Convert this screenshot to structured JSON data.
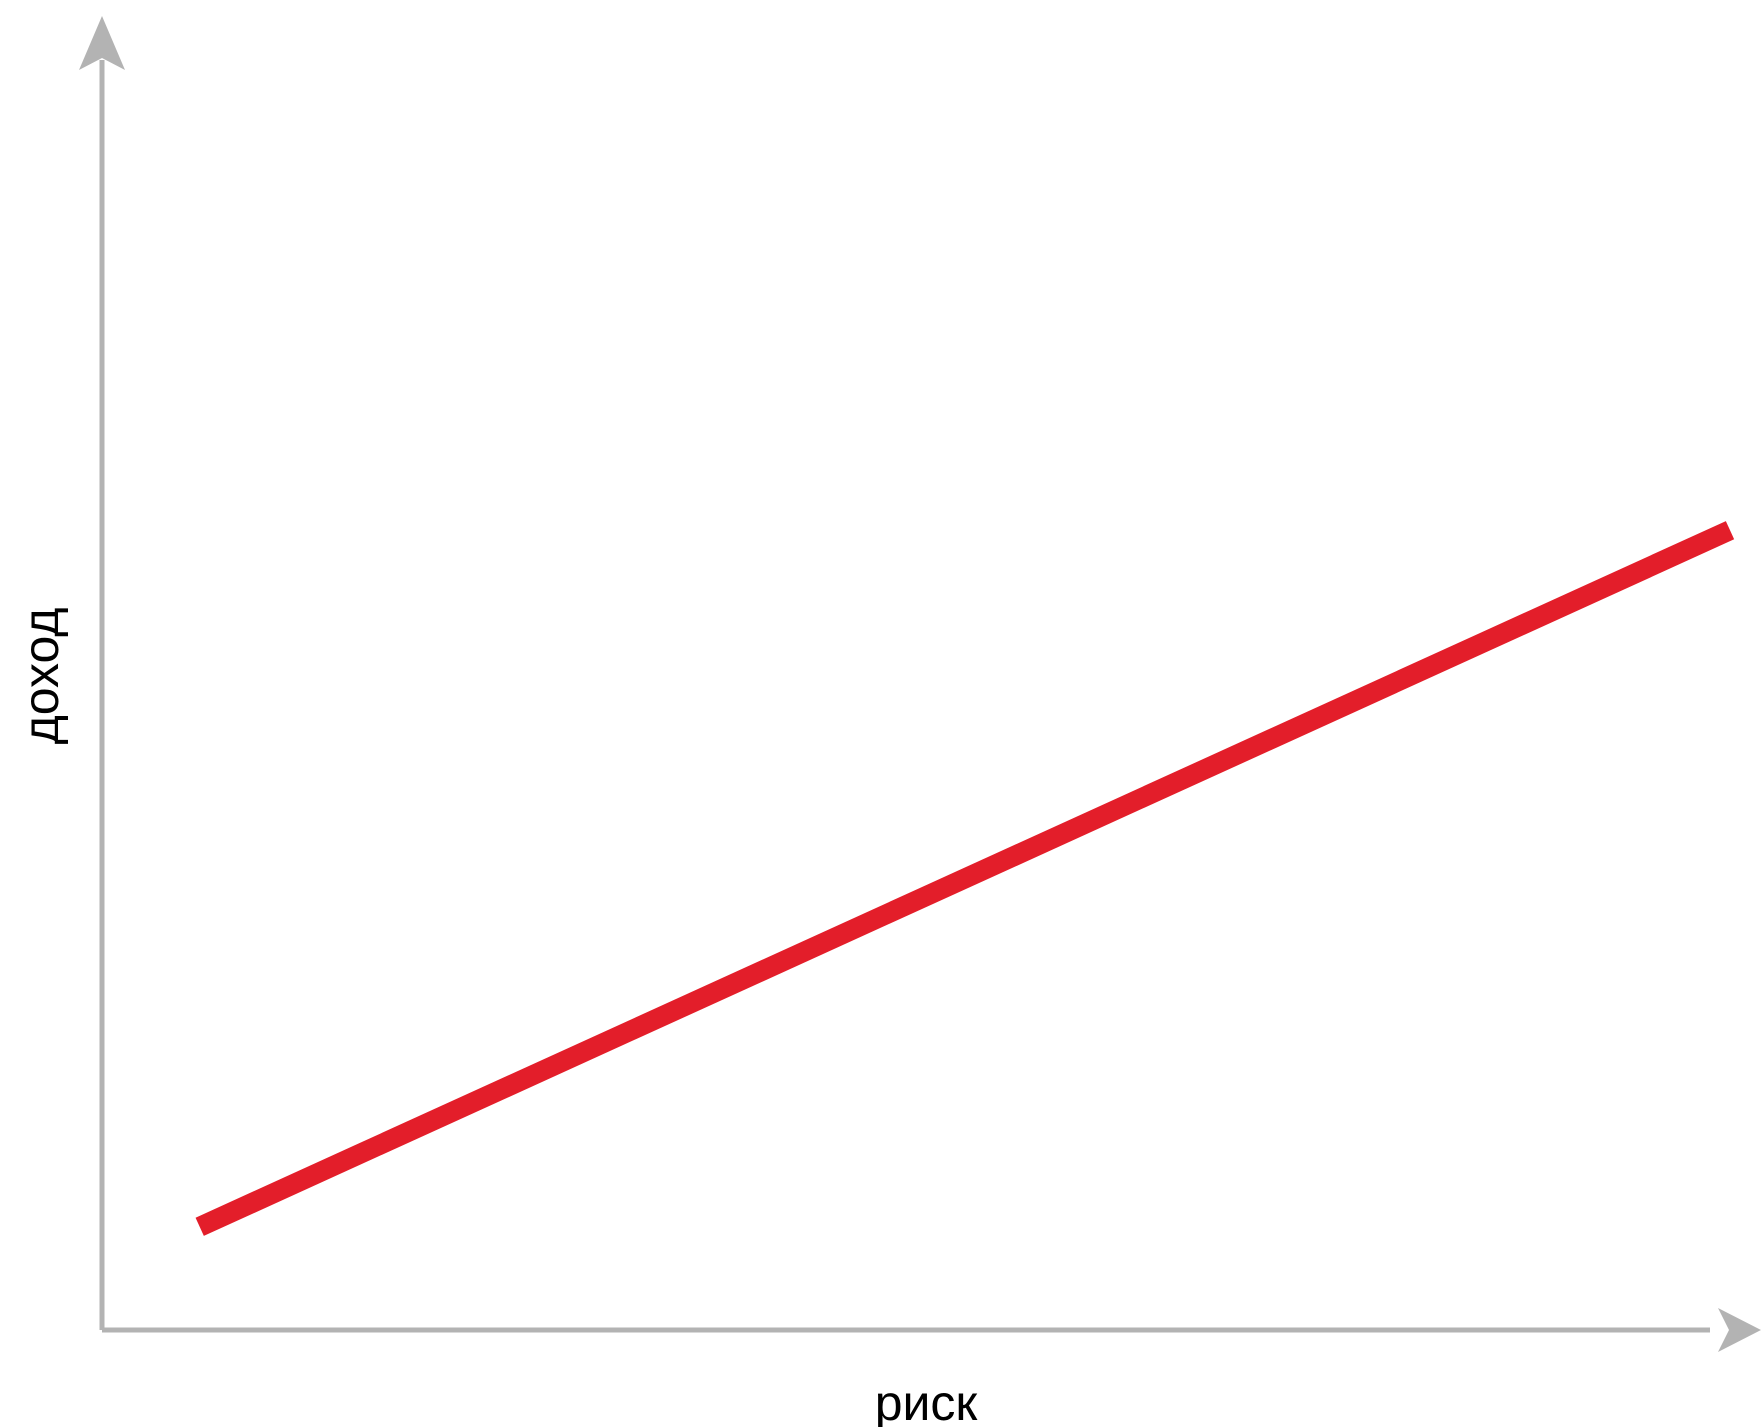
{
  "chart_data": {
    "type": "line",
    "title": "",
    "xlabel": "риск",
    "ylabel": "доход",
    "xlim": [
      0,
      1
    ],
    "ylim": [
      0,
      1
    ],
    "grid": false,
    "ticks": false,
    "series": [
      {
        "color": "#e31e2a",
        "x": [
          0.06,
          1.0
        ],
        "y": [
          0.08,
          0.62
        ]
      }
    ]
  },
  "colors": {
    "axis": "#b3b3b3",
    "line": "#e31e2a",
    "text": "#000000",
    "background": "#ffffff"
  }
}
